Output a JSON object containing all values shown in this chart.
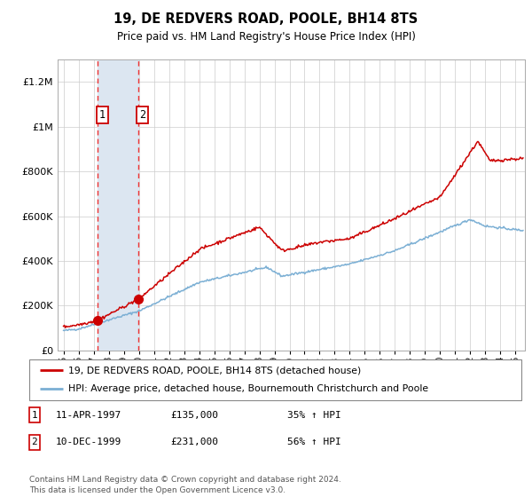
{
  "title": "19, DE REDVERS ROAD, POOLE, BH14 8TS",
  "subtitle": "Price paid vs. HM Land Registry's House Price Index (HPI)",
  "ylabel_ticks": [
    "£0",
    "£200K",
    "£400K",
    "£600K",
    "£800K",
    "£1M",
    "£1.2M"
  ],
  "ytick_values": [
    0,
    200000,
    400000,
    600000,
    800000,
    1000000,
    1200000
  ],
  "ylim": [
    0,
    1300000
  ],
  "xlim_start": 1994.6,
  "xlim_end": 2025.6,
  "purchase1_date": 1997.27,
  "purchase1_price": 135000,
  "purchase1_label": "1",
  "purchase2_date": 1999.94,
  "purchase2_price": 231000,
  "purchase2_label": "2",
  "legend_line1": "19, DE REDVERS ROAD, POOLE, BH14 8TS (detached house)",
  "legend_line2": "HPI: Average price, detached house, Bournemouth Christchurch and Poole",
  "table_row1": [
    "1",
    "11-APR-1997",
    "£135,000",
    "35% ↑ HPI"
  ],
  "table_row2": [
    "2",
    "10-DEC-1999",
    "£231,000",
    "56% ↑ HPI"
  ],
  "footer": "Contains HM Land Registry data © Crown copyright and database right 2024.\nThis data is licensed under the Open Government Licence v3.0.",
  "line_color_red": "#cc0000",
  "line_color_blue": "#7bafd4",
  "highlight_color": "#dce6f1",
  "background_color": "#ffffff",
  "grid_color": "#cccccc",
  "dashed_line_color": "#ee3333"
}
